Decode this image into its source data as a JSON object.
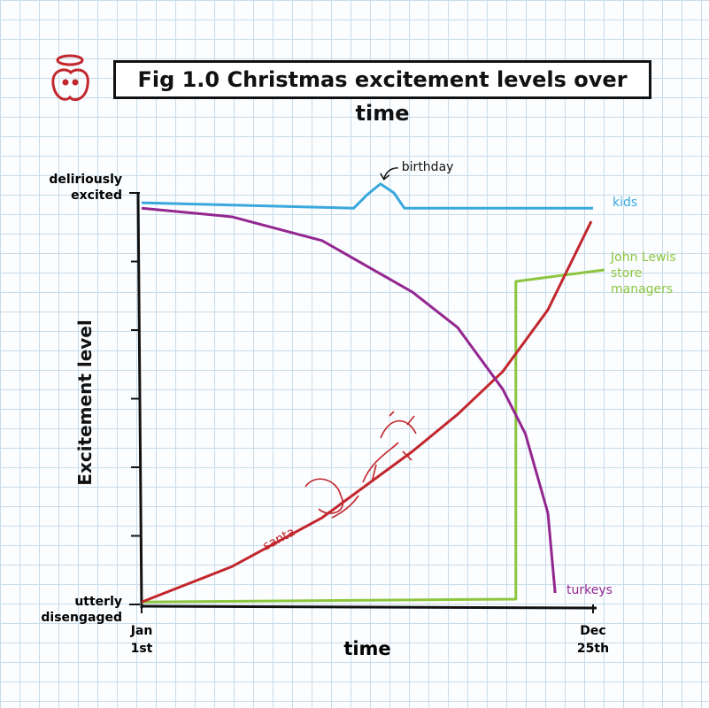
{
  "chart_data": {
    "type": "line",
    "title": "Fig 1.0 Christmas excitement levels over time",
    "xlabel": "time",
    "ylabel": "Excitement level",
    "xlim": [
      0,
      100
    ],
    "ylim": [
      0,
      100
    ],
    "xticks": [
      {
        "value": 0,
        "label": "Jan 1st"
      },
      {
        "value": 100,
        "label": "Dec 25th"
      }
    ],
    "yticks": [
      {
        "value": 0,
        "label": "utterly disengaged"
      },
      {
        "value": 100,
        "label": "deliriously excited"
      }
    ],
    "annotations": [
      {
        "text": "birthday",
        "x": 52.9,
        "y": 102.2
      }
    ],
    "series": [
      {
        "name": "kids",
        "color": "#3aa8dc",
        "x": [
          0,
          47,
          50,
          52.9,
          55.9,
          58.2,
          100
        ],
        "values": [
          97.6,
          96.3,
          99.6,
          102.2,
          100,
          96.3,
          96.3
        ]
      },
      {
        "name": "John Lewis store managers",
        "color": "#8cc63f",
        "x": [
          0,
          82.9,
          82.9,
          102.5
        ],
        "values": [
          0.6,
          1.3,
          78.5,
          81.3
        ]
      },
      {
        "name": "santa",
        "color": "#c1272d",
        "x": [
          0,
          20,
          40,
          60,
          70,
          80,
          90,
          99.6
        ],
        "values": [
          0.6,
          9.2,
          21.1,
          37.2,
          46.2,
          56.6,
          71.6,
          93.1
        ]
      },
      {
        "name": "turkeys",
        "color": "#93278f",
        "x": [
          0,
          20,
          40,
          60,
          70,
          80,
          85,
          90,
          91.6
        ],
        "values": [
          96.3,
          94.2,
          88.4,
          75.9,
          67.3,
          52.3,
          41.5,
          22.2,
          2.8
        ]
      }
    ]
  }
}
